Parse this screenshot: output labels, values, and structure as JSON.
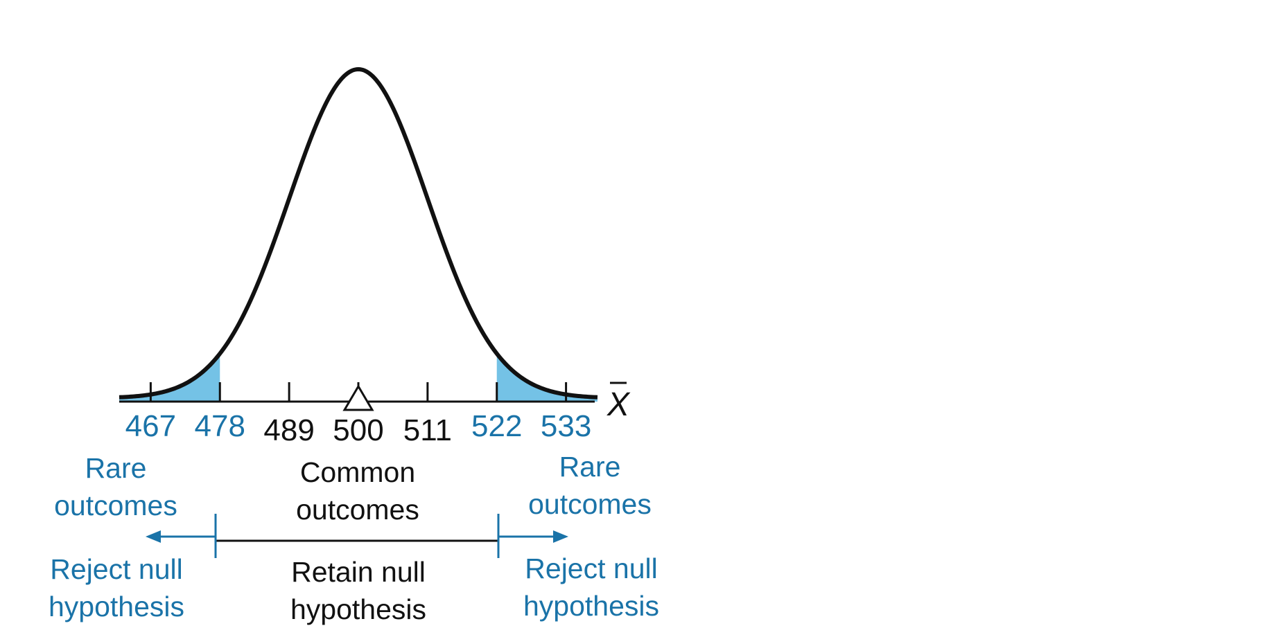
{
  "chart_data": {
    "type": "area",
    "distribution": "normal",
    "mean": 500,
    "sd": 11,
    "xlim": [
      462,
      538
    ],
    "x_axis_symbol": "X",
    "ticks": [
      467,
      478,
      489,
      500,
      511,
      522,
      533
    ],
    "rejection_region_ticks": [
      467,
      478,
      522,
      533
    ],
    "critical_values": [
      478,
      522
    ],
    "regions": {
      "left_tail": {
        "from": 462,
        "to": 478,
        "shaded": true
      },
      "right_tail": {
        "from": 522,
        "to": 538,
        "shaded": true
      }
    },
    "colors": {
      "curve": "#111111",
      "shade": "#74c2e6",
      "rejection_text": "#1a73a8",
      "retain_text": "#111111"
    }
  },
  "labels": {
    "left_outcome": [
      "Rare",
      "outcomes"
    ],
    "center_outcome": [
      "Common",
      "outcomes"
    ],
    "right_outcome": [
      "Rare",
      "outcomes"
    ],
    "left_decision": [
      "Reject null",
      "hypothesis"
    ],
    "center_decision": [
      "Retain null",
      "hypothesis"
    ],
    "right_decision": [
      "Reject null",
      "hypothesis"
    ]
  }
}
